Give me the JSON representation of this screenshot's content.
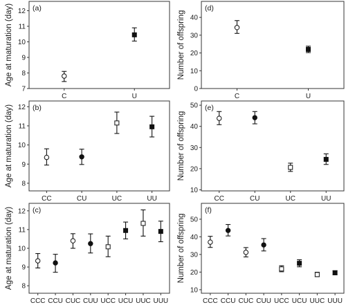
{
  "chart_data": [
    {
      "type": "scatter",
      "panel_label": "(a)",
      "ylabel": "Age at maturation (day)",
      "categories": [
        "C",
        "U"
      ],
      "ylim": [
        7,
        12.6
      ],
      "yticks": [
        7,
        8,
        9,
        10,
        11,
        12
      ],
      "points": [
        {
          "x": "C",
          "y": 7.8,
          "low": 7.45,
          "high": 8.1,
          "marker": "open-circle"
        },
        {
          "x": "U",
          "y": 10.45,
          "low": 10.05,
          "high": 10.9,
          "marker": "filled-square"
        }
      ]
    },
    {
      "type": "scatter",
      "panel_label": "(d)",
      "ylabel": "Number of offspring",
      "categories": [
        "C",
        "U"
      ],
      "ylim": [
        0,
        49
      ],
      "yticks": [
        0,
        10,
        20,
        30,
        40
      ],
      "points": [
        {
          "x": "C",
          "y": 34.3,
          "low": 31.0,
          "high": 38.2,
          "marker": "open-circle"
        },
        {
          "x": "U",
          "y": 22.0,
          "low": 20.2,
          "high": 23.8,
          "marker": "filled-square"
        }
      ]
    },
    {
      "type": "scatter",
      "panel_label": "(b)",
      "ylabel": "Age at maturation (day)",
      "categories": [
        "CC",
        "CU",
        "UC",
        "UU"
      ],
      "ylim": [
        7.6,
        12.3
      ],
      "yticks": [
        8,
        9,
        10,
        11,
        12
      ],
      "points": [
        {
          "x": "CC",
          "y": 9.35,
          "low": 8.95,
          "high": 9.8,
          "marker": "open-circle"
        },
        {
          "x": "CU",
          "y": 9.38,
          "low": 8.98,
          "high": 9.78,
          "marker": "filled-circle"
        },
        {
          "x": "UC",
          "y": 11.15,
          "low": 10.6,
          "high": 11.72,
          "marker": "open-square"
        },
        {
          "x": "UU",
          "y": 10.95,
          "low": 10.42,
          "high": 11.5,
          "marker": "filled-square"
        }
      ]
    },
    {
      "type": "scatter",
      "panel_label": "(e)",
      "ylabel": "Number of offspring",
      "categories": [
        "CC",
        "CU",
        "UC",
        "UU"
      ],
      "ylim": [
        9.5,
        52
      ],
      "yticks": [
        10,
        20,
        30,
        40,
        50
      ],
      "points": [
        {
          "x": "CC",
          "y": 43.8,
          "low": 40.8,
          "high": 47.0,
          "marker": "open-circle"
        },
        {
          "x": "CU",
          "y": 44.1,
          "low": 41.2,
          "high": 47.0,
          "marker": "filled-circle"
        },
        {
          "x": "UC",
          "y": 20.6,
          "low": 18.7,
          "high": 22.6,
          "marker": "open-square"
        },
        {
          "x": "UU",
          "y": 24.4,
          "low": 22.0,
          "high": 27.0,
          "marker": "filled-square"
        }
      ]
    },
    {
      "type": "scatter",
      "panel_label": "(c)",
      "ylabel": "Age at maturation (day)",
      "categories": [
        "CCC",
        "CCU",
        "CUC",
        "CUU",
        "UCC",
        "UCU",
        "UUC",
        "UUU"
      ],
      "ylim": [
        7.6,
        12.4
      ],
      "yticks": [
        8,
        9,
        10,
        11,
        12
      ],
      "points": [
        {
          "x": "CCC",
          "y": 9.33,
          "low": 8.95,
          "high": 9.72,
          "marker": "open-circle"
        },
        {
          "x": "CCU",
          "y": 9.22,
          "low": 8.72,
          "high": 9.68,
          "marker": "filled-circle"
        },
        {
          "x": "CUC",
          "y": 10.4,
          "low": 10.0,
          "high": 10.78,
          "marker": "open-circle"
        },
        {
          "x": "CUU",
          "y": 10.25,
          "low": 9.75,
          "high": 10.77,
          "marker": "filled-circle"
        },
        {
          "x": "UCC",
          "y": 10.08,
          "low": 9.55,
          "high": 10.65,
          "marker": "open-square"
        },
        {
          "x": "UCU",
          "y": 10.95,
          "low": 10.5,
          "high": 11.4,
          "marker": "filled-square"
        },
        {
          "x": "UUC",
          "y": 11.33,
          "low": 10.65,
          "high": 12.05,
          "marker": "open-square"
        },
        {
          "x": "UUU",
          "y": 10.9,
          "low": 10.35,
          "high": 11.45,
          "marker": "filled-square"
        }
      ]
    },
    {
      "type": "scatter",
      "panel_label": "(f)",
      "ylabel": "Number of offspring",
      "categories": [
        "CCC",
        "CCU",
        "CUC",
        "CUU",
        "UCC",
        "UCU",
        "UUC",
        "UUU"
      ],
      "ylim": [
        8,
        59
      ],
      "yticks": [
        10,
        20,
        30,
        40,
        50
      ],
      "points": [
        {
          "x": "CCC",
          "y": 37.0,
          "low": 34.0,
          "high": 40.3,
          "marker": "open-circle"
        },
        {
          "x": "CCU",
          "y": 43.6,
          "low": 40.5,
          "high": 47.0,
          "marker": "filled-circle"
        },
        {
          "x": "CUC",
          "y": 31.2,
          "low": 28.6,
          "high": 33.9,
          "marker": "open-circle"
        },
        {
          "x": "CUU",
          "y": 35.4,
          "low": 32.0,
          "high": 39.0,
          "marker": "filled-circle"
        },
        {
          "x": "UCC",
          "y": 21.8,
          "low": 20.2,
          "high": 23.6,
          "marker": "open-square"
        },
        {
          "x": "UCU",
          "y": 25.0,
          "low": 23.0,
          "high": 27.0,
          "marker": "filled-square"
        },
        {
          "x": "UUC",
          "y": 18.6,
          "low": 17.4,
          "high": 19.9,
          "marker": "open-square"
        },
        {
          "x": "UUU",
          "y": 19.6,
          "low": 18.5,
          "high": 20.8,
          "marker": "filled-square"
        }
      ]
    }
  ]
}
